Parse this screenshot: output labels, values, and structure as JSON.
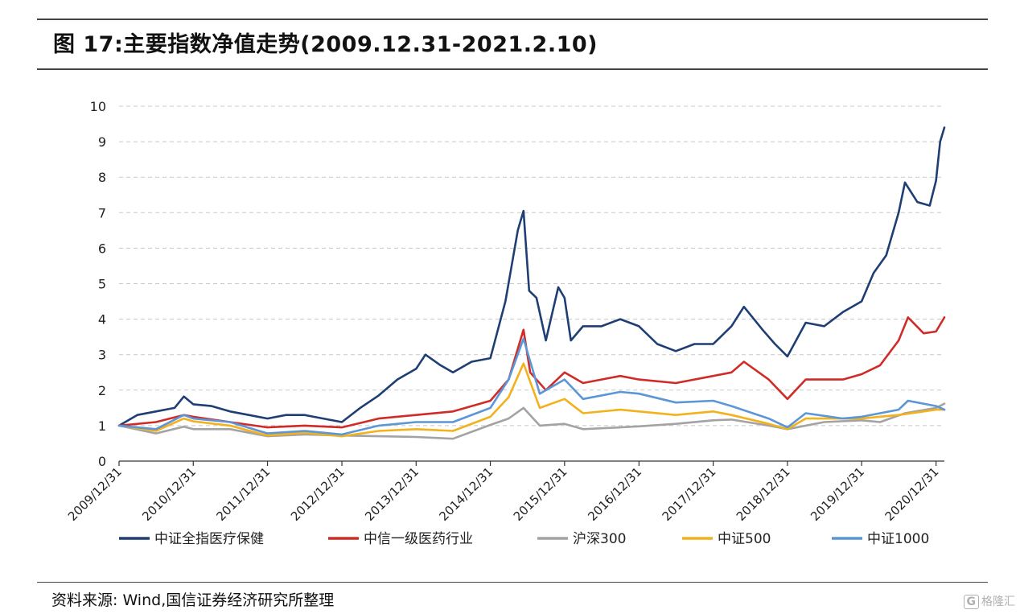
{
  "figure": {
    "title": "图 17:主要指数净值走势(2009.12.31-2021.2.10)",
    "source": "资料来源: Wind,国信证券经济研究所整理",
    "watermark": "格隆汇",
    "watermark_glyph": "G"
  },
  "colors": {
    "rule": "#444444",
    "grid": "#c8c8c8",
    "axis": "#333333"
  },
  "chart_data": {
    "type": "line",
    "title": "",
    "xlabel": "",
    "ylabel": "",
    "ylim": [
      0,
      10
    ],
    "yticks": [
      0,
      1,
      2,
      3,
      4,
      5,
      6,
      7,
      8,
      9,
      10
    ],
    "xlim": [
      "2009-12-31",
      "2021-02-10"
    ],
    "xticks": [
      "2009/12/31",
      "2010/12/31",
      "2011/12/31",
      "2012/12/31",
      "2013/12/31",
      "2014/12/31",
      "2015/12/31",
      "2016/12/31",
      "2017/12/31",
      "2018/12/31",
      "2019/12/31",
      "2020/12/31"
    ],
    "grid": "horizontal-dashed",
    "legend_position": "bottom",
    "series": [
      {
        "name": "中证全指医疗保健",
        "color": "#1f3e73",
        "points": [
          [
            "2009-12-31",
            1.0
          ],
          [
            "2010-03-31",
            1.3
          ],
          [
            "2010-06-30",
            1.4
          ],
          [
            "2010-09-30",
            1.5
          ],
          [
            "2010-11-15",
            1.82
          ],
          [
            "2010-12-31",
            1.6
          ],
          [
            "2011-03-31",
            1.55
          ],
          [
            "2011-06-30",
            1.4
          ],
          [
            "2011-09-30",
            1.3
          ],
          [
            "2011-12-31",
            1.2
          ],
          [
            "2012-03-31",
            1.3
          ],
          [
            "2012-06-30",
            1.3
          ],
          [
            "2012-09-30",
            1.2
          ],
          [
            "2012-12-31",
            1.1
          ],
          [
            "2013-03-31",
            1.5
          ],
          [
            "2013-06-30",
            1.85
          ],
          [
            "2013-09-30",
            2.3
          ],
          [
            "2013-12-31",
            2.6
          ],
          [
            "2014-02-15",
            3.0
          ],
          [
            "2014-04-30",
            2.7
          ],
          [
            "2014-06-30",
            2.5
          ],
          [
            "2014-09-30",
            2.8
          ],
          [
            "2014-12-31",
            2.9
          ],
          [
            "2015-03-15",
            4.5
          ],
          [
            "2015-05-15",
            6.5
          ],
          [
            "2015-06-12",
            7.05
          ],
          [
            "2015-07-10",
            4.8
          ],
          [
            "2015-08-15",
            4.6
          ],
          [
            "2015-09-30",
            3.4
          ],
          [
            "2015-11-30",
            4.9
          ],
          [
            "2015-12-31",
            4.6
          ],
          [
            "2016-01-31",
            3.4
          ],
          [
            "2016-03-31",
            3.8
          ],
          [
            "2016-06-30",
            3.8
          ],
          [
            "2016-09-30",
            4.0
          ],
          [
            "2016-12-31",
            3.8
          ],
          [
            "2017-03-31",
            3.3
          ],
          [
            "2017-06-30",
            3.1
          ],
          [
            "2017-09-30",
            3.3
          ],
          [
            "2017-12-31",
            3.3
          ],
          [
            "2018-03-31",
            3.8
          ],
          [
            "2018-05-31",
            4.35
          ],
          [
            "2018-08-31",
            3.7
          ],
          [
            "2018-10-31",
            3.3
          ],
          [
            "2018-12-31",
            2.95
          ],
          [
            "2019-03-31",
            3.9
          ],
          [
            "2019-06-30",
            3.8
          ],
          [
            "2019-09-30",
            4.2
          ],
          [
            "2019-12-31",
            4.5
          ],
          [
            "2020-02-28",
            5.3
          ],
          [
            "2020-04-30",
            5.8
          ],
          [
            "2020-06-30",
            7.0
          ],
          [
            "2020-07-31",
            7.85
          ],
          [
            "2020-09-30",
            7.3
          ],
          [
            "2020-11-30",
            7.2
          ],
          [
            "2020-12-31",
            7.9
          ],
          [
            "2021-01-20",
            9.0
          ],
          [
            "2021-02-10",
            9.4
          ]
        ]
      },
      {
        "name": "中信一级医药行业",
        "color": "#d02b27",
        "points": [
          [
            "2009-12-31",
            1.0
          ],
          [
            "2010-06-30",
            1.1
          ],
          [
            "2010-11-15",
            1.3
          ],
          [
            "2010-12-31",
            1.25
          ],
          [
            "2011-06-30",
            1.1
          ],
          [
            "2011-12-31",
            0.95
          ],
          [
            "2012-06-30",
            1.0
          ],
          [
            "2012-12-31",
            0.95
          ],
          [
            "2013-06-30",
            1.2
          ],
          [
            "2013-12-31",
            1.3
          ],
          [
            "2014-06-30",
            1.4
          ],
          [
            "2014-12-31",
            1.7
          ],
          [
            "2015-03-31",
            2.3
          ],
          [
            "2015-06-12",
            3.7
          ],
          [
            "2015-07-15",
            2.5
          ],
          [
            "2015-09-30",
            2.0
          ],
          [
            "2015-12-31",
            2.5
          ],
          [
            "2016-03-31",
            2.2
          ],
          [
            "2016-06-30",
            2.3
          ],
          [
            "2016-09-30",
            2.4
          ],
          [
            "2016-12-31",
            2.3
          ],
          [
            "2017-06-30",
            2.2
          ],
          [
            "2017-12-31",
            2.4
          ],
          [
            "2018-03-31",
            2.5
          ],
          [
            "2018-05-31",
            2.8
          ],
          [
            "2018-09-30",
            2.3
          ],
          [
            "2018-12-31",
            1.75
          ],
          [
            "2019-03-31",
            2.3
          ],
          [
            "2019-09-30",
            2.3
          ],
          [
            "2019-12-31",
            2.45
          ],
          [
            "2020-03-31",
            2.7
          ],
          [
            "2020-06-30",
            3.4
          ],
          [
            "2020-08-15",
            4.05
          ],
          [
            "2020-10-31",
            3.6
          ],
          [
            "2020-12-31",
            3.65
          ],
          [
            "2021-02-10",
            4.05
          ]
        ]
      },
      {
        "name": "沪深300",
        "color": "#a3a3a3",
        "points": [
          [
            "2009-12-31",
            1.0
          ],
          [
            "2010-06-30",
            0.78
          ],
          [
            "2010-11-15",
            0.97
          ],
          [
            "2010-12-31",
            0.9
          ],
          [
            "2011-06-30",
            0.9
          ],
          [
            "2011-12-31",
            0.7
          ],
          [
            "2012-06-30",
            0.75
          ],
          [
            "2012-12-31",
            0.72
          ],
          [
            "2013-06-30",
            0.7
          ],
          [
            "2013-12-31",
            0.68
          ],
          [
            "2014-06-30",
            0.63
          ],
          [
            "2014-12-31",
            1.02
          ],
          [
            "2015-03-31",
            1.2
          ],
          [
            "2015-06-12",
            1.5
          ],
          [
            "2015-08-31",
            1.0
          ],
          [
            "2015-12-31",
            1.05
          ],
          [
            "2016-03-31",
            0.9
          ],
          [
            "2016-09-30",
            0.95
          ],
          [
            "2016-12-31",
            0.98
          ],
          [
            "2017-06-30",
            1.05
          ],
          [
            "2017-12-31",
            1.15
          ],
          [
            "2018-03-31",
            1.17
          ],
          [
            "2018-09-30",
            1.0
          ],
          [
            "2018-12-31",
            0.9
          ],
          [
            "2019-06-30",
            1.1
          ],
          [
            "2019-12-31",
            1.15
          ],
          [
            "2020-03-31",
            1.1
          ],
          [
            "2020-07-31",
            1.35
          ],
          [
            "2020-12-31",
            1.5
          ],
          [
            "2021-02-10",
            1.62
          ]
        ]
      },
      {
        "name": "中证500",
        "color": "#f3b11c",
        "points": [
          [
            "2009-12-31",
            1.0
          ],
          [
            "2010-06-30",
            0.85
          ],
          [
            "2010-11-15",
            1.2
          ],
          [
            "2010-12-31",
            1.12
          ],
          [
            "2011-06-30",
            1.0
          ],
          [
            "2011-12-31",
            0.72
          ],
          [
            "2012-06-30",
            0.8
          ],
          [
            "2012-12-31",
            0.7
          ],
          [
            "2013-06-30",
            0.85
          ],
          [
            "2013-12-31",
            0.9
          ],
          [
            "2014-06-30",
            0.85
          ],
          [
            "2014-12-31",
            1.25
          ],
          [
            "2015-03-31",
            1.8
          ],
          [
            "2015-06-12",
            2.75
          ],
          [
            "2015-08-31",
            1.5
          ],
          [
            "2015-12-31",
            1.75
          ],
          [
            "2016-03-31",
            1.35
          ],
          [
            "2016-09-30",
            1.45
          ],
          [
            "2016-12-31",
            1.4
          ],
          [
            "2017-06-30",
            1.3
          ],
          [
            "2017-12-31",
            1.4
          ],
          [
            "2018-03-31",
            1.3
          ],
          [
            "2018-09-30",
            1.05
          ],
          [
            "2018-12-31",
            0.9
          ],
          [
            "2019-03-31",
            1.2
          ],
          [
            "2019-12-31",
            1.2
          ],
          [
            "2020-06-30",
            1.3
          ],
          [
            "2020-12-31",
            1.45
          ],
          [
            "2021-02-10",
            1.45
          ]
        ]
      },
      {
        "name": "中证1000",
        "color": "#5b96d6",
        "points": [
          [
            "2009-12-31",
            1.0
          ],
          [
            "2010-06-30",
            0.9
          ],
          [
            "2010-11-15",
            1.3
          ],
          [
            "2010-12-31",
            1.2
          ],
          [
            "2011-06-30",
            1.1
          ],
          [
            "2011-12-31",
            0.78
          ],
          [
            "2012-06-30",
            0.85
          ],
          [
            "2012-12-31",
            0.75
          ],
          [
            "2013-06-30",
            1.0
          ],
          [
            "2013-12-31",
            1.1
          ],
          [
            "2014-06-30",
            1.1
          ],
          [
            "2014-12-31",
            1.5
          ],
          [
            "2015-03-31",
            2.3
          ],
          [
            "2015-06-12",
            3.45
          ],
          [
            "2015-08-31",
            1.9
          ],
          [
            "2015-12-31",
            2.3
          ],
          [
            "2016-03-31",
            1.75
          ],
          [
            "2016-09-30",
            1.95
          ],
          [
            "2016-12-31",
            1.9
          ],
          [
            "2017-06-30",
            1.65
          ],
          [
            "2017-12-31",
            1.7
          ],
          [
            "2018-03-31",
            1.55
          ],
          [
            "2018-09-30",
            1.2
          ],
          [
            "2018-12-31",
            0.95
          ],
          [
            "2019-03-31",
            1.35
          ],
          [
            "2019-09-30",
            1.2
          ],
          [
            "2019-12-31",
            1.25
          ],
          [
            "2020-06-30",
            1.45
          ],
          [
            "2020-08-15",
            1.7
          ],
          [
            "2020-12-31",
            1.55
          ],
          [
            "2021-02-10",
            1.45
          ]
        ]
      }
    ]
  }
}
